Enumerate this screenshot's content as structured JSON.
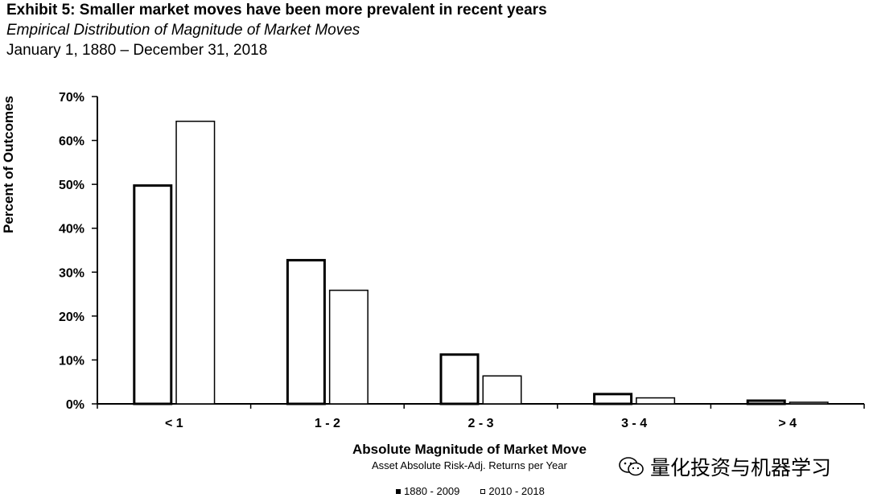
{
  "header": {
    "title": "Exhibit 5: Smaller market moves have been more prevalent in recent years",
    "subtitle": "Empirical Distribution of Magnitude of Market Moves",
    "date_range": "January 1, 1880 – December 31, 2018"
  },
  "watermark": {
    "text": "量化投资与机器学习",
    "icon": "wechat-icon"
  },
  "chart_data": {
    "type": "bar",
    "title": "Exhibit 5: Smaller market moves have been more prevalent in recent years",
    "xlabel": "Absolute Magnitude of Market Move",
    "xsublabel": "Asset Absolute Risk-Adj. Returns per Year",
    "ylabel": "Percent of Outcomes",
    "categories": [
      "< 1",
      "1 - 2",
      "2 - 3",
      "3 - 4",
      "> 4"
    ],
    "ylim": [
      0,
      70
    ],
    "yticks": [
      0,
      10,
      20,
      30,
      40,
      50,
      60,
      70
    ],
    "ytick_labels": [
      "0%",
      "10%",
      "20%",
      "30%",
      "40%",
      "50%",
      "60%",
      "70%"
    ],
    "grid": false,
    "legend_position": "bottom",
    "series": [
      {
        "name": "1880 - 2009",
        "values": [
          50,
          33,
          11.5,
          2.5,
          1
        ],
        "color": "#000000",
        "style": "thick-outline"
      },
      {
        "name": "2010 - 2018",
        "values": [
          64.5,
          26,
          6.5,
          1.5,
          0.5
        ],
        "color": "#000000",
        "style": "thin-outline"
      }
    ]
  }
}
